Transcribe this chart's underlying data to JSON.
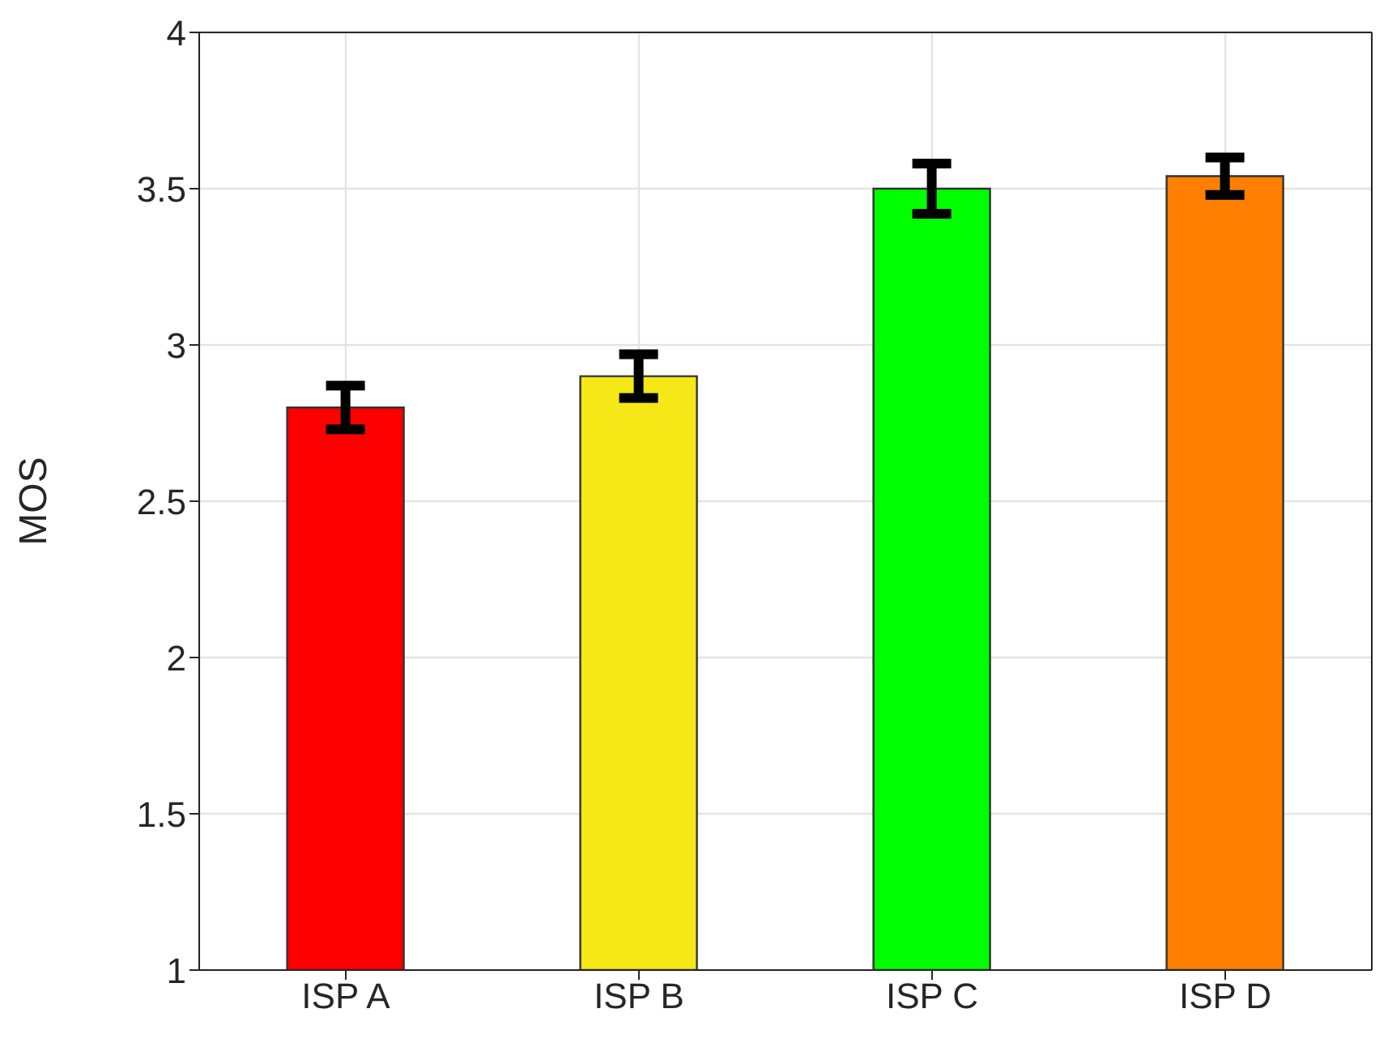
{
  "chart_data": {
    "type": "bar",
    "ylabel": "MOS",
    "categories": [
      "ISP A",
      "ISP B",
      "ISP C",
      "ISP D"
    ],
    "values": [
      2.8,
      2.9,
      3.5,
      3.54
    ],
    "colors": [
      "#ff0000",
      "#f5e816",
      "#00ff00",
      "#ff7f00"
    ],
    "errors": [
      0.07,
      0.07,
      0.08,
      0.06
    ],
    "ylim": [
      1,
      4
    ],
    "yticks": [
      1,
      1.5,
      2,
      2.5,
      3,
      3.5,
      4
    ],
    "grid": true
  }
}
